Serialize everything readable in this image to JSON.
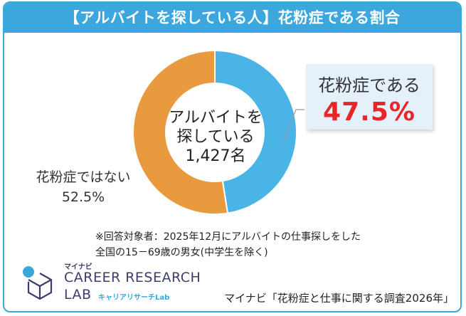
{
  "title": "【アルバイトを探している人】花粉症である割合",
  "center_label": {
    "line1": "アルバイトを",
    "line2": "探している",
    "line3": "1,427名"
  },
  "highlight": {
    "label": "花粉症である",
    "value": "47.5%"
  },
  "other": {
    "label": "花粉症ではない",
    "value": "52.5%"
  },
  "note": {
    "line1": "※回答対象者：2025年12月にアルバイトの仕事探しをした",
    "line2": "全国の15－69歳の男女(中学生を除く)"
  },
  "logo": {
    "brand": "マイナビ",
    "line1": "CAREER RESEARCH",
    "line2": "LAB",
    "sub": "キャリアリサーチLab"
  },
  "source": "マイナビ「花粉症と仕事に関する調査2026年」",
  "colors": {
    "accent": "#3ba7dd",
    "blue_slice": "#4ab4e6",
    "orange_slice": "#e99a3f",
    "highlight": "#e8262a"
  },
  "chart_data": {
    "type": "pie",
    "title": "【アルバイトを探している人】花粉症である割合",
    "categories": [
      "花粉症である",
      "花粉症ではない"
    ],
    "values": [
      47.5,
      52.5
    ],
    "unit": "%",
    "sample": "1,427名",
    "center_text": "アルバイトを探している1,427名"
  }
}
